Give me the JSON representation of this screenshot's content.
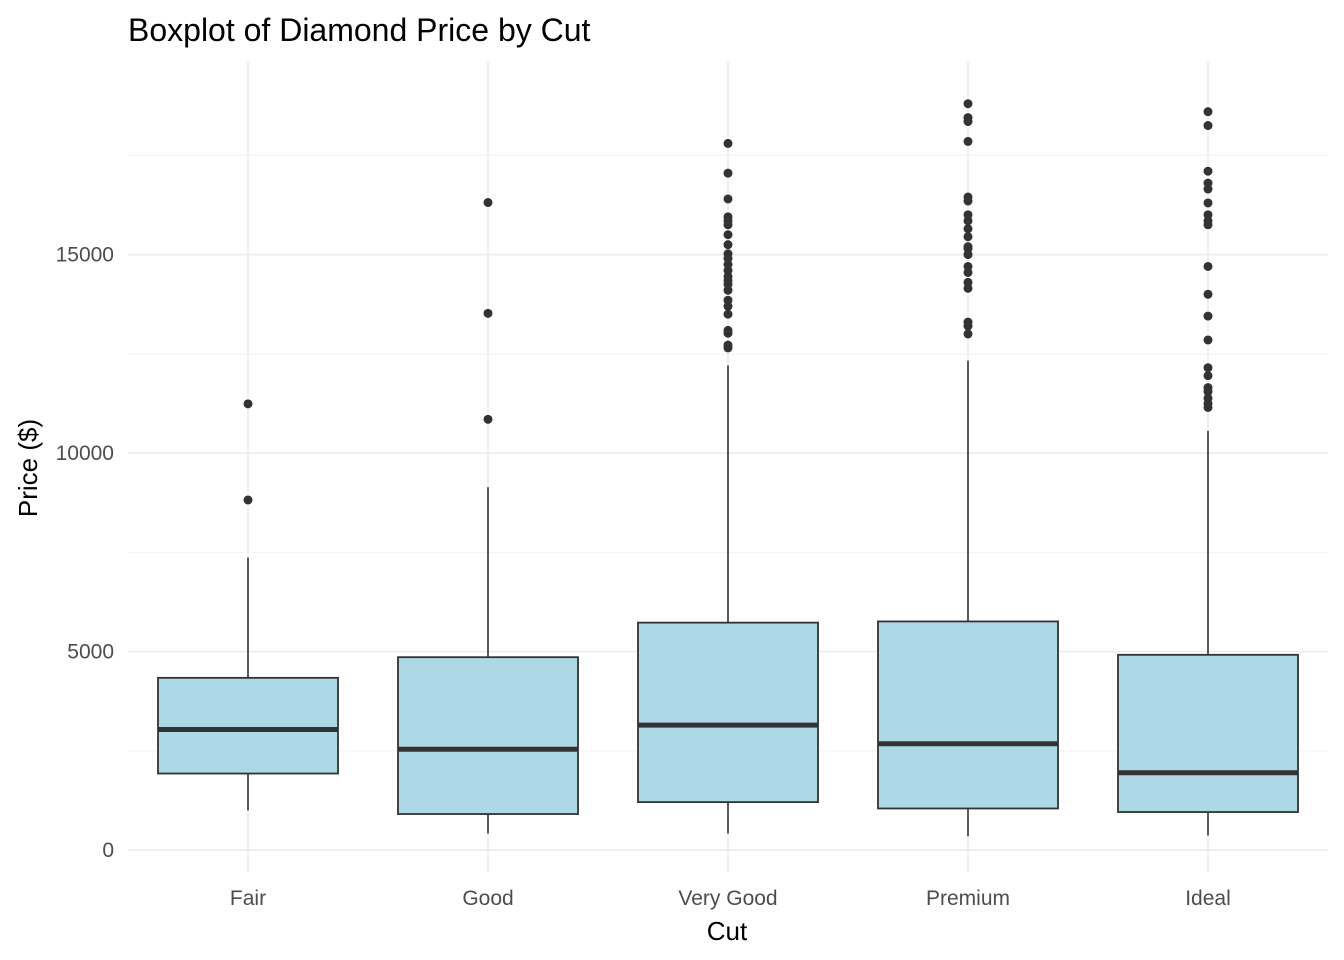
{
  "chart_data": {
    "type": "boxplot",
    "title": "Boxplot of Diamond Price by Cut",
    "xlabel": "Cut",
    "ylabel": "Price ($)",
    "categories": [
      "Fair",
      "Good",
      "Very Good",
      "Premium",
      "Ideal"
    ],
    "yticks": [
      0,
      5000,
      10000,
      15000
    ],
    "ytick_labels": [
      "0",
      "5000",
      "10000",
      "15000"
    ],
    "ylim": [
      -550,
      19850
    ],
    "grid": true,
    "legend": "none",
    "fill_color": "#add8e6",
    "line_color": "#333333",
    "boxes": [
      {
        "category": "Fair",
        "whisker_low": 1000,
        "q1": 1930,
        "median": 3040,
        "q3": 4340,
        "whisker_high": 7370,
        "outliers": [
          8820,
          11240
        ]
      },
      {
        "category": "Good",
        "whisker_low": 420,
        "q1": 910,
        "median": 2540,
        "q3": 4860,
        "whisker_high": 9140,
        "outliers": [
          10850,
          13520,
          16310
        ]
      },
      {
        "category": "Very Good",
        "whisker_low": 420,
        "q1": 1210,
        "median": 3150,
        "q3": 5730,
        "whisker_high": 12210,
        "outliers": [
          12650,
          12720,
          13020,
          13090,
          13500,
          13700,
          13850,
          14100,
          14250,
          14350,
          14450,
          14600,
          14750,
          14900,
          15020,
          15250,
          15500,
          15750,
          15850,
          15950,
          16400,
          17050,
          17800
        ]
      },
      {
        "category": "Premium",
        "whisker_low": 350,
        "q1": 1050,
        "median": 2680,
        "q3": 5760,
        "whisker_high": 12330,
        "outliers": [
          13000,
          13200,
          13300,
          14150,
          14300,
          14550,
          14700,
          15000,
          15150,
          15200,
          15450,
          15650,
          15850,
          16000,
          16350,
          16450,
          17850,
          18350,
          18450,
          18800
        ]
      },
      {
        "category": "Ideal",
        "whisker_low": 370,
        "q1": 960,
        "median": 1950,
        "q3": 4920,
        "whisker_high": 10560,
        "outliers": [
          11150,
          11250,
          11380,
          11550,
          11650,
          11950,
          12150,
          12850,
          13450,
          14000,
          14700,
          15750,
          15850,
          16000,
          16300,
          16650,
          16800,
          17100,
          18250,
          18600
        ]
      }
    ]
  }
}
